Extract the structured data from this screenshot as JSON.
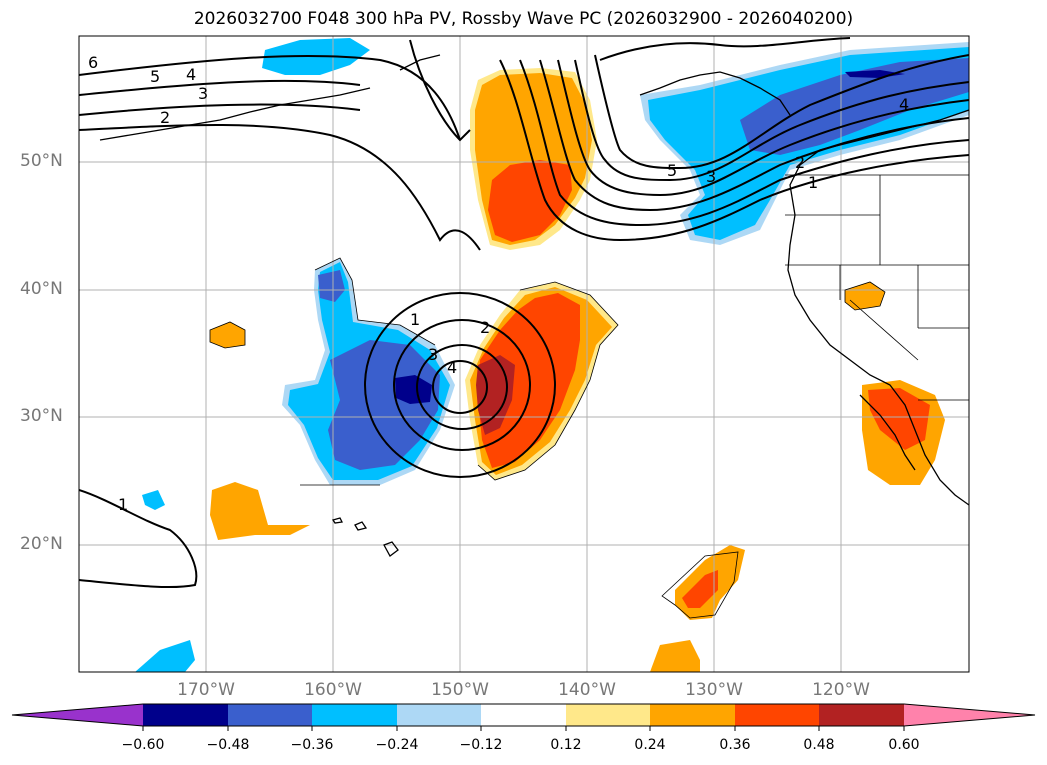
{
  "title": "2026032700 F048 300 hPa PV, Rossby Wave PC (2026032900 - 2026040200)",
  "lat_labels": [
    "50°N",
    "40°N",
    "30°N",
    "20°N"
  ],
  "lon_labels": [
    "170°W",
    "160°W",
    "150°W",
    "140°W",
    "130°W",
    "120°W"
  ],
  "colorbar": {
    "tick_labels": [
      "−0.60",
      "−0.48",
      "−0.36",
      "−0.24",
      "−0.12",
      "0.12",
      "0.24",
      "0.36",
      "0.48",
      "0.60"
    ],
    "colors": [
      "#9932cc",
      "#00008b",
      "#3a5fcd",
      "#00bfff",
      "#add8f5",
      "#ffffff",
      "#ffe88a",
      "#ffa500",
      "#ff4500",
      "#b22222",
      "#ff82ab"
    ]
  },
  "contour_labels": [
    "1",
    "2",
    "3",
    "4",
    "1",
    "2",
    "3",
    "4",
    "5",
    "6",
    "1",
    "2",
    "3",
    "4",
    "5"
  ]
}
